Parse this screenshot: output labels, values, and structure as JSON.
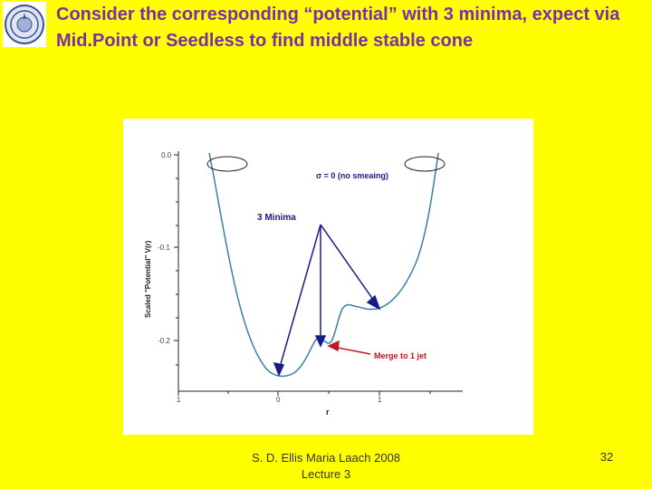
{
  "slide": {
    "title": "Consider the corresponding “potential” with 3 minima, expect via Mid.Point or Seedless to find middle stable cone",
    "footer_line1": "S. D. Ellis   Maria Laach 2008",
    "footer_line2": "Lecture 3",
    "page_number": "32",
    "background_color": "#ffff00",
    "title_color": "#7b2fa6",
    "logo": "university-seal-icon"
  },
  "chart_data": {
    "type": "line",
    "ylabel": "Scaled \"Potential\" V(r)",
    "xlabel": "r",
    "x_ticks": [
      "1",
      "0",
      "1"
    ],
    "y_ticks": [
      "0.0",
      "-0.1",
      "-0.2"
    ],
    "annotations": {
      "legend": "σ = 0 (no smeaing)",
      "minima_label": "3 Minima",
      "merge_label": "Merge to 1 jet"
    },
    "colors": {
      "curve": "#3a7fa8",
      "arrows": "#1a1a8c",
      "merge_arrow": "#c0181e",
      "merge_text": "#c0181e"
    }
  }
}
